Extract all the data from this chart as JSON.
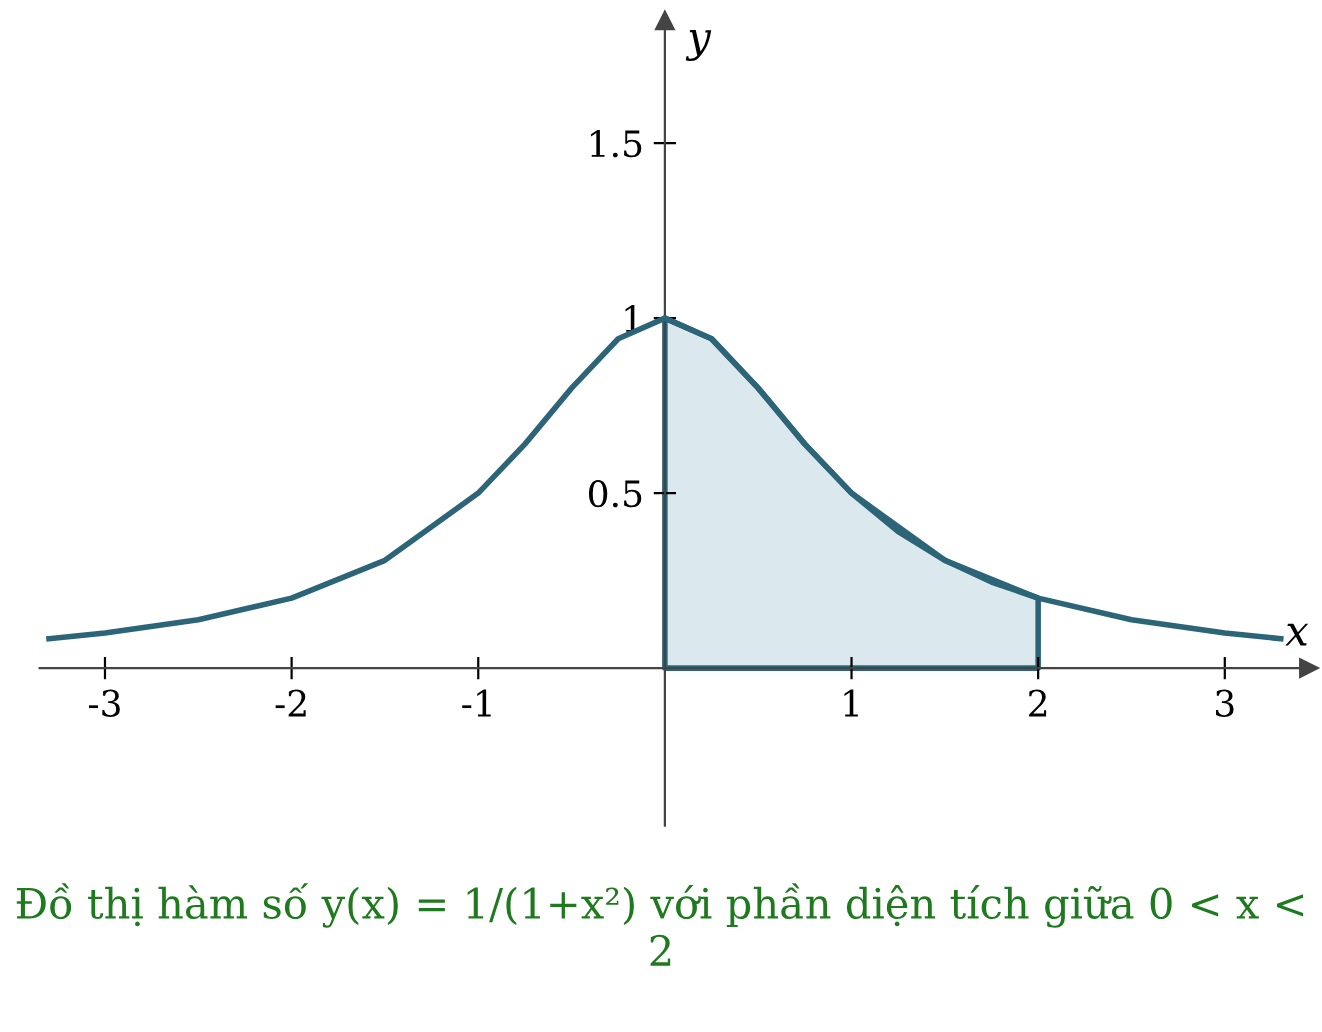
{
  "chart_data": {
    "type": "line",
    "xlabel": "x",
    "ylabel": "y",
    "xlim": [
      -3.35,
      3.45
    ],
    "ylim": [
      -0.45,
      1.85
    ],
    "xticks": [
      -3,
      -2,
      -1,
      1,
      2,
      3
    ],
    "yticks": [
      0.5,
      1,
      1.5
    ],
    "grid": false,
    "legend": false,
    "series": [
      {
        "type": "area",
        "color": "#dbe8ee",
        "x": [
          0,
          0.25,
          0.5,
          0.75,
          1,
          1.25,
          1.5,
          1.75,
          2
        ],
        "values": [
          1,
          0.941,
          0.8,
          0.64,
          0.5,
          0.39,
          0.308,
          0.246,
          0.2
        ]
      },
      {
        "color": "#2c6478",
        "x": [
          -3.3,
          -3,
          -2.5,
          -2,
          -1.5,
          -1,
          -0.75,
          -0.5,
          -0.25,
          0,
          0.25,
          0.5,
          0.75,
          1,
          1.5,
          2,
          2.5,
          3,
          3.3
        ],
        "values": [
          0.084,
          0.1,
          0.138,
          0.2,
          0.308,
          0.5,
          0.64,
          0.8,
          0.941,
          1,
          0.941,
          0.8,
          0.64,
          0.5,
          0.308,
          0.2,
          0.138,
          0.1,
          0.084
        ]
      }
    ],
    "annotations": [
      "Đồ thị hàm số y(x) = 1/(1+x²) với phần diện tích giữa 0 < x < 2"
    ]
  }
}
